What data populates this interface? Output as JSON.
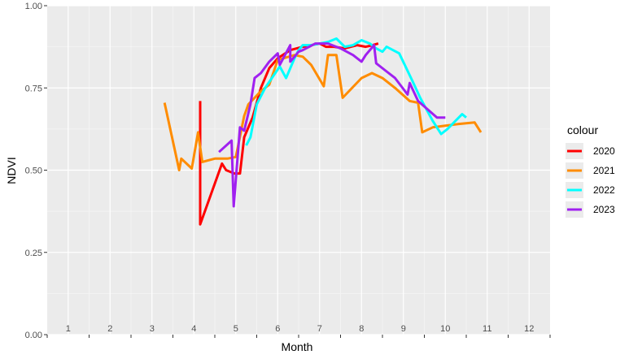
{
  "chart_data": {
    "type": "line",
    "xlabel": "Month",
    "ylabel": "NDVI",
    "xlim": [
      0.5,
      12.5
    ],
    "ylim": [
      0,
      1
    ],
    "x_ticks": [
      1,
      2,
      3,
      4,
      5,
      6,
      7,
      8,
      9,
      10,
      11,
      12
    ],
    "x_tick_labels": [
      "1",
      "2",
      "3",
      "4",
      "5",
      "6",
      "7",
      "8",
      "9",
      "10",
      "11",
      "12"
    ],
    "y_ticks": [
      0,
      0.25,
      0.5,
      0.75,
      1
    ],
    "y_tick_labels": [
      "0.00",
      "0.25",
      "0.50",
      "0.75",
      "1.00"
    ],
    "grid": true,
    "legend_title": "colour",
    "legend_position": "right",
    "series": [
      {
        "name": "2020",
        "color": "#ff0000",
        "points": [
          [
            4.15,
            0.71
          ],
          [
            4.15,
            0.335
          ],
          [
            4.15,
            0.335
          ],
          [
            4.67,
            0.52
          ],
          [
            4.77,
            0.5
          ],
          [
            4.97,
            0.49
          ],
          [
            5.1,
            0.49
          ],
          [
            5.2,
            0.6
          ],
          [
            5.4,
            0.66
          ],
          [
            5.6,
            0.75
          ],
          [
            5.8,
            0.81
          ],
          [
            6.0,
            0.84
          ],
          [
            6.3,
            0.865
          ],
          [
            6.6,
            0.875
          ],
          [
            7.0,
            0.885
          ],
          [
            7.15,
            0.875
          ],
          [
            7.35,
            0.875
          ],
          [
            7.6,
            0.87
          ],
          [
            7.9,
            0.88
          ],
          [
            8.1,
            0.875
          ],
          [
            8.2,
            0.878
          ],
          [
            8.4,
            0.885
          ]
        ]
      },
      {
        "name": "2021",
        "color": "#ff8c00",
        "points": [
          [
            3.3,
            0.705
          ],
          [
            3.65,
            0.5
          ],
          [
            3.7,
            0.535
          ],
          [
            3.95,
            0.505
          ],
          [
            4.1,
            0.615
          ],
          [
            4.2,
            0.525
          ],
          [
            4.5,
            0.535
          ],
          [
            4.8,
            0.535
          ],
          [
            5.0,
            0.54
          ],
          [
            5.2,
            0.665
          ],
          [
            5.3,
            0.7
          ],
          [
            5.6,
            0.74
          ],
          [
            5.8,
            0.76
          ],
          [
            6.0,
            0.835
          ],
          [
            6.4,
            0.85
          ],
          [
            6.6,
            0.845
          ],
          [
            6.8,
            0.82
          ],
          [
            7.1,
            0.755
          ],
          [
            7.2,
            0.85
          ],
          [
            7.4,
            0.85
          ],
          [
            7.55,
            0.72
          ],
          [
            8.0,
            0.78
          ],
          [
            8.25,
            0.795
          ],
          [
            8.5,
            0.78
          ],
          [
            8.8,
            0.75
          ],
          [
            9.15,
            0.71
          ],
          [
            9.35,
            0.705
          ],
          [
            9.45,
            0.615
          ],
          [
            9.7,
            0.63
          ],
          [
            10.0,
            0.635
          ],
          [
            10.3,
            0.64
          ],
          [
            10.7,
            0.645
          ],
          [
            10.85,
            0.615
          ]
        ]
      },
      {
        "name": "2022",
        "color": "#00ffff",
        "points": [
          [
            5.25,
            0.575
          ],
          [
            5.35,
            0.6
          ],
          [
            5.5,
            0.7
          ],
          [
            5.7,
            0.75
          ],
          [
            6.05,
            0.815
          ],
          [
            6.2,
            0.78
          ],
          [
            6.4,
            0.84
          ],
          [
            6.5,
            0.865
          ],
          [
            6.6,
            0.88
          ],
          [
            6.8,
            0.88
          ],
          [
            7.2,
            0.89
          ],
          [
            7.4,
            0.9
          ],
          [
            7.6,
            0.875
          ],
          [
            7.8,
            0.88
          ],
          [
            8.0,
            0.895
          ],
          [
            8.2,
            0.885
          ],
          [
            8.35,
            0.87
          ],
          [
            8.5,
            0.86
          ],
          [
            8.6,
            0.875
          ],
          [
            8.9,
            0.855
          ],
          [
            9.2,
            0.775
          ],
          [
            9.4,
            0.72
          ],
          [
            9.7,
            0.65
          ],
          [
            9.9,
            0.61
          ],
          [
            10.05,
            0.625
          ],
          [
            10.4,
            0.67
          ],
          [
            10.5,
            0.66
          ]
        ]
      },
      {
        "name": "2023",
        "color": "#a020f0",
        "points": [
          [
            4.6,
            0.555
          ],
          [
            4.9,
            0.59
          ],
          [
            4.95,
            0.39
          ],
          [
            5.1,
            0.63
          ],
          [
            5.2,
            0.62
          ],
          [
            5.35,
            0.7
          ],
          [
            5.45,
            0.78
          ],
          [
            5.6,
            0.795
          ],
          [
            5.8,
            0.83
          ],
          [
            6.0,
            0.855
          ],
          [
            6.05,
            0.82
          ],
          [
            6.3,
            0.88
          ],
          [
            6.3,
            0.83
          ],
          [
            6.5,
            0.86
          ],
          [
            6.6,
            0.865
          ],
          [
            6.9,
            0.885
          ],
          [
            7.2,
            0.885
          ],
          [
            7.5,
            0.87
          ],
          [
            7.8,
            0.85
          ],
          [
            8.0,
            0.83
          ],
          [
            8.1,
            0.85
          ],
          [
            8.3,
            0.88
          ],
          [
            8.35,
            0.825
          ],
          [
            8.6,
            0.8
          ],
          [
            8.8,
            0.78
          ],
          [
            9.1,
            0.73
          ],
          [
            9.15,
            0.765
          ],
          [
            9.35,
            0.71
          ],
          [
            9.8,
            0.66
          ],
          [
            10.0,
            0.66
          ]
        ]
      }
    ]
  }
}
